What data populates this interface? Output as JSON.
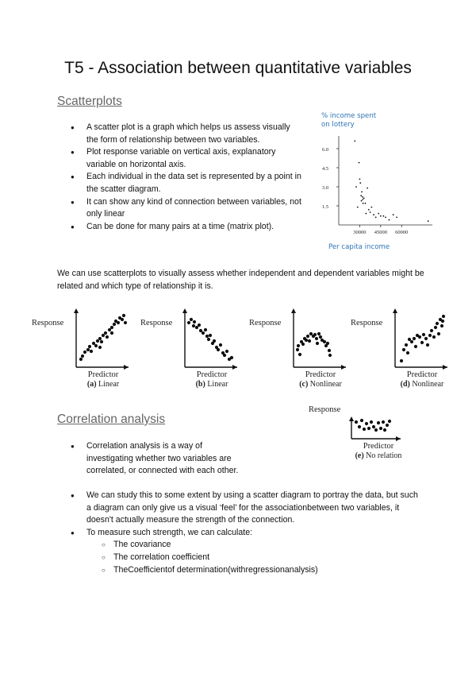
{
  "title": "T5 - Association between quantitative variables",
  "scatterplots": {
    "heading": "Scatterplots",
    "bullets": [
      "A scatter plot is a graph which helps us assess visually the form of relationship between two variables.",
      "Plot response variable on vertical axis, explanatory variable on horizontal axis.",
      "Each individual in the data set is represented by a point in the scatter diagram.",
      "It can show any kind of connection between variables, not only linear",
      "Can be done for many pairs at a time (matrix plot)."
    ]
  },
  "lottery_chart": {
    "ylabel_line1": "% income spent",
    "ylabel_line2": "on lottery",
    "xlabel": "Per capita income",
    "yticks": [
      "6.0",
      "4.5",
      "3.0",
      "1.5"
    ],
    "xticks": [
      "30000",
      "45000",
      "60000"
    ]
  },
  "chart_data": [
    {
      "type": "scatter",
      "ylabel": "% income spent on lottery",
      "xlabel": "Per capita income",
      "ylim": [
        0,
        7
      ],
      "xlim": [
        15000,
        82000
      ],
      "yticks": [
        1.5,
        3.0,
        4.5,
        6.0
      ],
      "xticks": [
        30000,
        45000,
        60000
      ],
      "points": [
        [
          26500,
          6.6
        ],
        [
          27500,
          3.0
        ],
        [
          28500,
          1.4
        ],
        [
          29500,
          4.9
        ],
        [
          30000,
          3.6
        ],
        [
          30500,
          3.3
        ],
        [
          31000,
          2.3
        ],
        [
          31200,
          1.9
        ],
        [
          31500,
          2.6
        ],
        [
          32000,
          2.2
        ],
        [
          32200,
          2.0
        ],
        [
          32400,
          1.7
        ],
        [
          33000,
          2.1
        ],
        [
          34000,
          1.7
        ],
        [
          34500,
          0.9
        ],
        [
          35500,
          2.9
        ],
        [
          36500,
          1.2
        ],
        [
          37500,
          1.0
        ],
        [
          38500,
          1.4
        ],
        [
          40000,
          0.8
        ],
        [
          41500,
          0.6
        ],
        [
          43500,
          0.9
        ],
        [
          45000,
          0.7
        ],
        [
          47000,
          0.7
        ],
        [
          48500,
          0.6
        ],
        [
          51000,
          0.4
        ],
        [
          54000,
          0.8
        ],
        [
          56500,
          0.6
        ],
        [
          79000,
          0.3
        ]
      ]
    }
  ],
  "intro_paragraph": "We can use scatterplots to visually assess whether independent and dependent variables might be related and which type of relationship it is.",
  "panels": [
    {
      "ylabel": "Response",
      "xlabel": "Predictor",
      "caption_tag": "(a)",
      "caption": "Linear"
    },
    {
      "ylabel": "Response",
      "xlabel": "Predictor",
      "caption_tag": "(b)",
      "caption": "Linear"
    },
    {
      "ylabel": "Response",
      "xlabel": "Predictor",
      "caption_tag": "(c)",
      "caption": "Nonlinear"
    },
    {
      "ylabel": "Response",
      "xlabel": "Predictor",
      "caption_tag": "(d)",
      "caption": "Nonlinear"
    },
    {
      "ylabel": "Response",
      "xlabel": "Predictor",
      "caption_tag": "(e)",
      "caption": "No relation"
    }
  ],
  "correlation": {
    "heading": "Correlation analysis",
    "bullets": [
      "Correlation analysis is a way of investigating whether two variables are correlated, or connected with each other.",
      "We can study this to some extent by using a scatter diagram to portray the data, but such a diagram can only give us a visual ‘feel’ for the associationbetween two variables, it doesn't actually measure the strength of the connection.",
      "To measure such strength, we can calculate:"
    ],
    "sub_bullets": [
      "The covariance",
      "The correlation coefficient",
      "TheCoefficientof determination(withregressionanalysis)"
    ]
  }
}
